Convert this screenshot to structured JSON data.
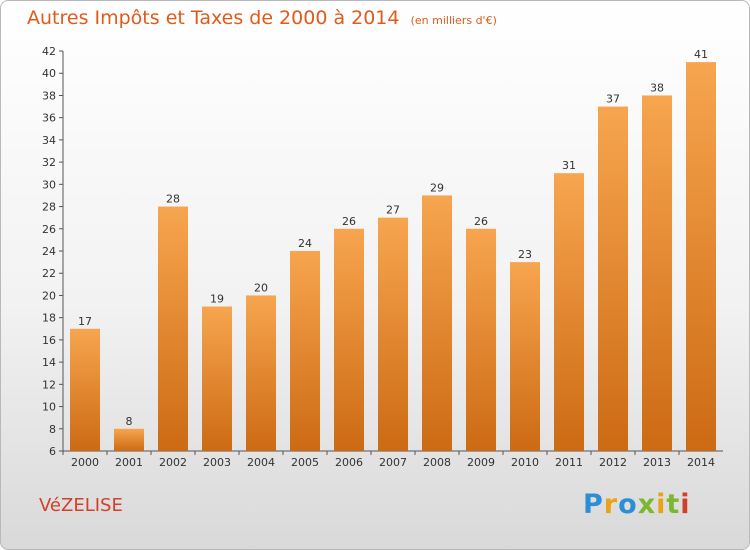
{
  "header": {
    "title": "Autres Impôts et Taxes de 2000 à 2014",
    "subtitle": "(en milliers d'€)"
  },
  "footer": {
    "commune": "VéZELISE",
    "logo_letters": [
      "P",
      "r",
      "o",
      "x",
      "i",
      "t",
      "i"
    ]
  },
  "colors": {
    "bar_top": "#f7a54f",
    "bar_bottom": "#cd6a14",
    "title": "#e05a1a",
    "commune": "#d2402a"
  },
  "chart_data": {
    "type": "bar",
    "categories": [
      "2000",
      "2001",
      "2002",
      "2003",
      "2004",
      "2005",
      "2006",
      "2007",
      "2008",
      "2009",
      "2010",
      "2011",
      "2012",
      "2013",
      "2014"
    ],
    "values": [
      17,
      8,
      28,
      19,
      20,
      24,
      26,
      27,
      29,
      26,
      23,
      31,
      37,
      38,
      41
    ],
    "title": "Autres Impôts et Taxes de 2000 à 2014",
    "subtitle": "(en milliers d'€)",
    "ylim": [
      6,
      42
    ],
    "yticks": [
      6,
      8,
      10,
      12,
      14,
      16,
      18,
      20,
      22,
      24,
      26,
      28,
      30,
      32,
      34,
      36,
      38,
      40,
      42
    ],
    "grid": false,
    "data_labels": true
  }
}
